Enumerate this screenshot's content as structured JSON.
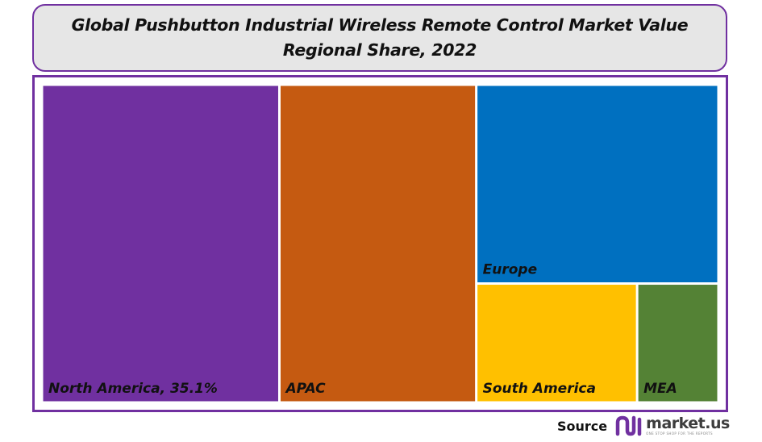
{
  "title": {
    "line1": "Global Pushbutton Industrial Wireless Remote Control Market Value",
    "line2": "Regional Share, 2022"
  },
  "chart_data": {
    "type": "treemap",
    "title": "Global Pushbutton Industrial Wireless Remote Control Market Value Regional Share, 2022",
    "unit": "%",
    "items": [
      {
        "label": "North America, 35.1%",
        "name": "North America",
        "value": 35.1,
        "color": "#7030a0"
      },
      {
        "label": "APAC",
        "name": "APAC",
        "value": 29.1,
        "color": "#c55a11"
      },
      {
        "label": "Europe",
        "name": "Europe",
        "value": 22.4,
        "color": "#0070c0"
      },
      {
        "label": "South America",
        "name": "South America",
        "value": 8.9,
        "color": "#ffc000"
      },
      {
        "label": "MEA",
        "name": "MEA",
        "value": 4.5,
        "color": "#548235"
      }
    ]
  },
  "footer": {
    "source_label": "Source",
    "brand_name": "market.us",
    "brand_tagline": "ONE STOP SHOP FOR THE REPORTS",
    "brand_color": "#7030a0"
  }
}
